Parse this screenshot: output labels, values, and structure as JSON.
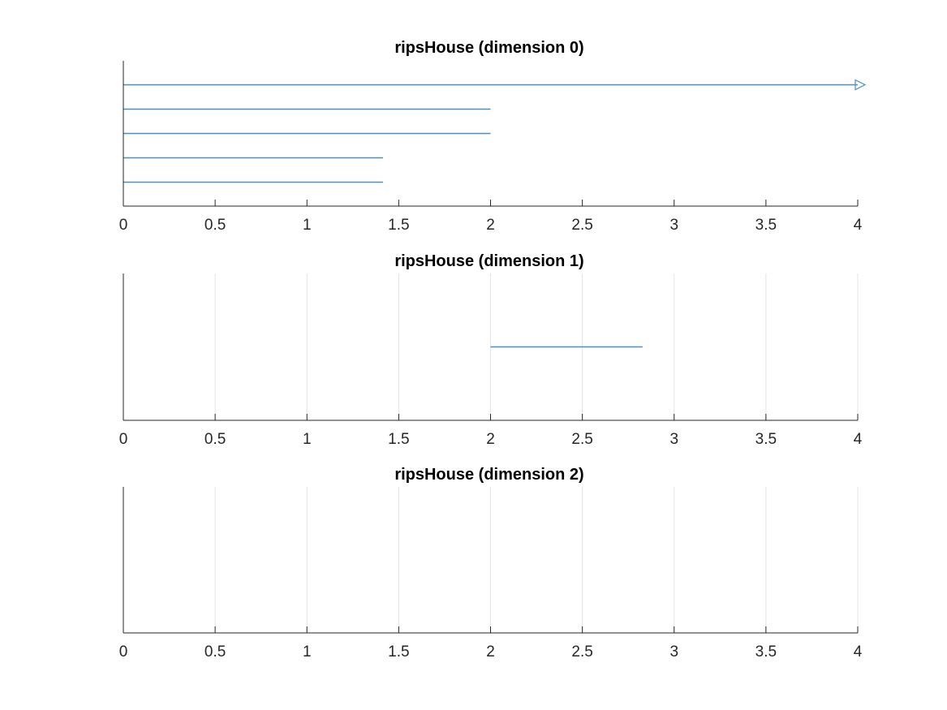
{
  "chart_data": [
    {
      "type": "barcode",
      "title": "ripsHouse (dimension 0)",
      "xlim": [
        0,
        4
      ],
      "xticks": [
        "0",
        "0.5",
        "1",
        "1.5",
        "2",
        "2.5",
        "3",
        "3.5",
        "4"
      ],
      "grid": "off",
      "color": "#4a90c0",
      "intervals": [
        {
          "birth": 0,
          "death": null,
          "infinite": true
        },
        {
          "birth": 0,
          "death": 2.0
        },
        {
          "birth": 0,
          "death": 2.0
        },
        {
          "birth": 0,
          "death": 1.414
        },
        {
          "birth": 0,
          "death": 1.414
        }
      ]
    },
    {
      "type": "barcode",
      "title": "ripsHouse (dimension 1)",
      "xlim": [
        0,
        4
      ],
      "xticks": [
        "0",
        "0.5",
        "1",
        "1.5",
        "2",
        "2.5",
        "3",
        "3.5",
        "4"
      ],
      "grid": "vertical",
      "color": "#4a90c0",
      "intervals": [
        {
          "birth": 2.0,
          "death": 2.828
        }
      ]
    },
    {
      "type": "barcode",
      "title": "ripsHouse (dimension 2)",
      "xlim": [
        0,
        4
      ],
      "xticks": [
        "0",
        "0.5",
        "1",
        "1.5",
        "2",
        "2.5",
        "3",
        "3.5",
        "4"
      ],
      "grid": "vertical",
      "color": "#4a90c0",
      "intervals": []
    }
  ]
}
